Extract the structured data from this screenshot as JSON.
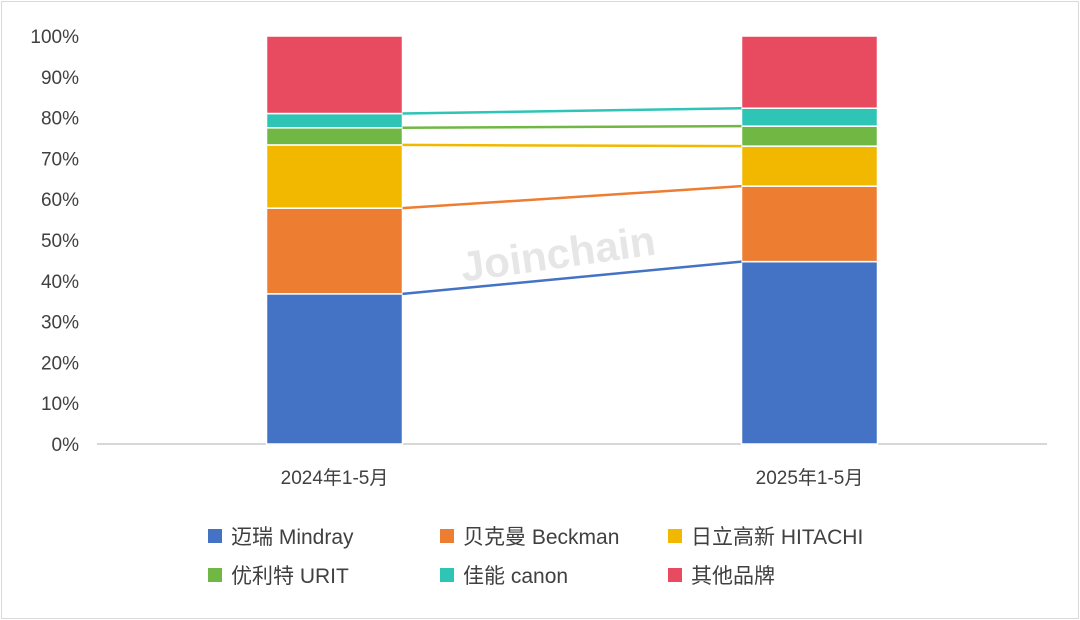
{
  "watermark": "Joinchain",
  "chart_data": {
    "type": "bar",
    "stacked": true,
    "percent_stacked": true,
    "categories": [
      "2024年1-5月",
      "2025年1-5月"
    ],
    "yticks": [
      "0%",
      "10%",
      "20%",
      "30%",
      "40%",
      "50%",
      "60%",
      "70%",
      "80%",
      "90%",
      "100%"
    ],
    "ylim": [
      0,
      100
    ],
    "legend_position": "bottom",
    "series_lines": true,
    "series": [
      {
        "name": "迈瑞 Mindray",
        "color": "#4472C4",
        "values": [
          36.8,
          44.7
        ]
      },
      {
        "name": "贝克曼 Beckman",
        "color": "#ED7D31",
        "values": [
          21.0,
          18.5
        ]
      },
      {
        "name": "日立高新 HITACHI",
        "color": "#F2B800",
        "values": [
          15.5,
          9.8
        ]
      },
      {
        "name": "优利特 URIT",
        "color": "#70B843",
        "values": [
          4.2,
          4.9
        ]
      },
      {
        "name": "佳能 canon",
        "color": "#2EC4B6",
        "values": [
          3.5,
          4.4
        ]
      },
      {
        "name": "其他品牌",
        "color": "#E84A5F",
        "values": [
          19.0,
          17.7
        ]
      }
    ]
  }
}
